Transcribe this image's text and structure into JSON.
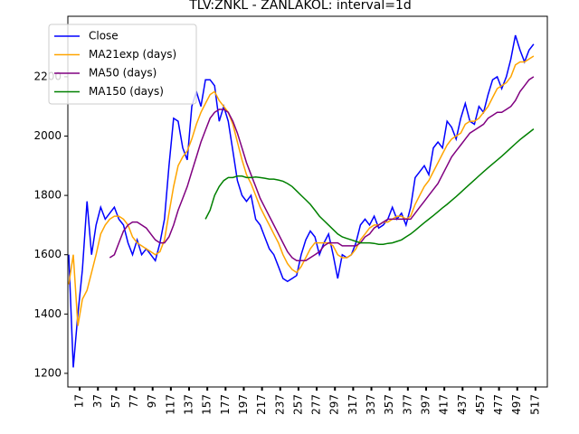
{
  "chart_data": {
    "type": "line",
    "title": "TLV:ZNKL - ZANLAKOL: interval=1d",
    "x": [
      5,
      10,
      15,
      20,
      25,
      30,
      35,
      40,
      45,
      50,
      55,
      60,
      65,
      70,
      75,
      80,
      85,
      90,
      95,
      100,
      105,
      110,
      115,
      120,
      125,
      130,
      135,
      140,
      145,
      150,
      155,
      160,
      165,
      170,
      175,
      180,
      185,
      190,
      195,
      200,
      205,
      210,
      215,
      220,
      225,
      230,
      235,
      240,
      245,
      250,
      255,
      260,
      265,
      270,
      275,
      280,
      285,
      290,
      295,
      300,
      305,
      310,
      315,
      320,
      325,
      330,
      335,
      340,
      345,
      350,
      355,
      360,
      365,
      370,
      375,
      380,
      385,
      390,
      395,
      400,
      405,
      410,
      415,
      420,
      425,
      430,
      435,
      440,
      445,
      450,
      455,
      460,
      465,
      470,
      475,
      480,
      485,
      490,
      495,
      500,
      505,
      510,
      515
    ],
    "series": [
      {
        "name": "Close",
        "color": "#0000ff",
        "values": [
          1600,
          1220,
          1400,
          1550,
          1780,
          1600,
          1700,
          1760,
          1720,
          1740,
          1760,
          1720,
          1700,
          1640,
          1600,
          1650,
          1600,
          1620,
          1600,
          1580,
          1640,
          1720,
          1900,
          2060,
          2050,
          1960,
          1920,
          2100,
          2150,
          2100,
          2190,
          2190,
          2170,
          2050,
          2100,
          2050,
          1950,
          1850,
          1800,
          1780,
          1800,
          1720,
          1700,
          1660,
          1620,
          1600,
          1560,
          1520,
          1510,
          1520,
          1530,
          1600,
          1650,
          1680,
          1660,
          1600,
          1640,
          1670,
          1600,
          1520,
          1600,
          1590,
          1600,
          1640,
          1700,
          1720,
          1700,
          1730,
          1690,
          1700,
          1720,
          1760,
          1720,
          1740,
          1700,
          1760,
          1860,
          1880,
          1900,
          1870,
          1960,
          1980,
          1960,
          2050,
          2030,
          1990,
          2060,
          2110,
          2050,
          2040,
          2100,
          2080,
          2140,
          2190,
          2200,
          2160,
          2200,
          2260,
          2340,
          2290,
          2250,
          2290,
          2310
        ]
      },
      {
        "name": "MA21exp (days)",
        "color": "#ffa500",
        "values": [
          1500,
          1600,
          1360,
          1450,
          1480,
          1540,
          1600,
          1670,
          1700,
          1720,
          1730,
          1730,
          1720,
          1700,
          1660,
          1640,
          1630,
          1620,
          1610,
          1600,
          1610,
          1650,
          1740,
          1830,
          1900,
          1930,
          1950,
          1990,
          2040,
          2080,
          2110,
          2140,
          2150,
          2120,
          2100,
          2080,
          2040,
          1980,
          1920,
          1870,
          1840,
          1800,
          1760,
          1730,
          1700,
          1670,
          1640,
          1600,
          1570,
          1550,
          1540,
          1560,
          1590,
          1620,
          1640,
          1640,
          1640,
          1640,
          1630,
          1600,
          1590,
          1590,
          1600,
          1620,
          1650,
          1670,
          1690,
          1700,
          1700,
          1710,
          1710,
          1720,
          1730,
          1730,
          1720,
          1730,
          1770,
          1800,
          1830,
          1850,
          1880,
          1910,
          1940,
          1970,
          1990,
          2000,
          2010,
          2040,
          2050,
          2050,
          2060,
          2080,
          2100,
          2130,
          2160,
          2170,
          2180,
          2200,
          2240,
          2250,
          2250,
          2260,
          2270
        ]
      },
      {
        "name": "MA50 (days)",
        "color": "#800080",
        "values": [
          null,
          null,
          null,
          null,
          null,
          null,
          null,
          null,
          null,
          1590,
          1600,
          1640,
          1680,
          1700,
          1710,
          1710,
          1700,
          1690,
          1670,
          1650,
          1640,
          1640,
          1660,
          1700,
          1750,
          1790,
          1830,
          1880,
          1930,
          1980,
          2020,
          2060,
          2080,
          2090,
          2090,
          2080,
          2050,
          2010,
          1960,
          1910,
          1870,
          1830,
          1790,
          1760,
          1730,
          1700,
          1670,
          1640,
          1610,
          1590,
          1580,
          1580,
          1580,
          1590,
          1600,
          1610,
          1630,
          1640,
          1640,
          1640,
          1630,
          1630,
          1630,
          1630,
          1640,
          1660,
          1670,
          1690,
          1700,
          1710,
          1720,
          1720,
          1720,
          1720,
          1720,
          1720,
          1740,
          1760,
          1780,
          1800,
          1820,
          1840,
          1870,
          1900,
          1930,
          1950,
          1970,
          1990,
          2010,
          2020,
          2030,
          2040,
          2060,
          2070,
          2080,
          2080,
          2090,
          2100,
          2120,
          2150,
          2170,
          2190,
          2200
        ]
      },
      {
        "name": "MA150 (days)",
        "color": "#008000",
        "values": [
          null,
          null,
          null,
          null,
          null,
          null,
          null,
          null,
          null,
          null,
          null,
          null,
          null,
          null,
          null,
          null,
          null,
          null,
          null,
          null,
          null,
          null,
          null,
          null,
          null,
          null,
          null,
          null,
          null,
          null,
          1720,
          1750,
          1800,
          1830,
          1850,
          1860,
          1860,
          1865,
          1865,
          1860,
          1860,
          1862,
          1860,
          1858,
          1855,
          1855,
          1852,
          1848,
          1840,
          1830,
          1815,
          1800,
          1785,
          1770,
          1750,
          1730,
          1715,
          1700,
          1685,
          1670,
          1660,
          1655,
          1650,
          1645,
          1640,
          1640,
          1640,
          1638,
          1635,
          1635,
          1638,
          1640,
          1645,
          1650,
          1660,
          1670,
          1682,
          1695,
          1708,
          1720,
          1732,
          1745,
          1758,
          1770,
          1783,
          1796,
          1810,
          1824,
          1838,
          1852,
          1866,
          1880,
          1893,
          1906,
          1919,
          1932,
          1946,
          1960,
          1974,
          1988,
          2000,
          2012,
          2024
        ]
      }
    ],
    "xlim": [
      4,
      530
    ],
    "xticks": [
      17,
      37,
      57,
      77,
      97,
      117,
      137,
      157,
      177,
      197,
      217,
      237,
      257,
      277,
      297,
      317,
      337,
      357,
      377,
      397,
      417,
      437,
      457,
      477,
      497,
      517
    ],
    "ylim": [
      1154,
      2404
    ],
    "yticks": [
      1200,
      1400,
      1600,
      1800,
      2000,
      2200
    ],
    "legend": "upper left"
  }
}
